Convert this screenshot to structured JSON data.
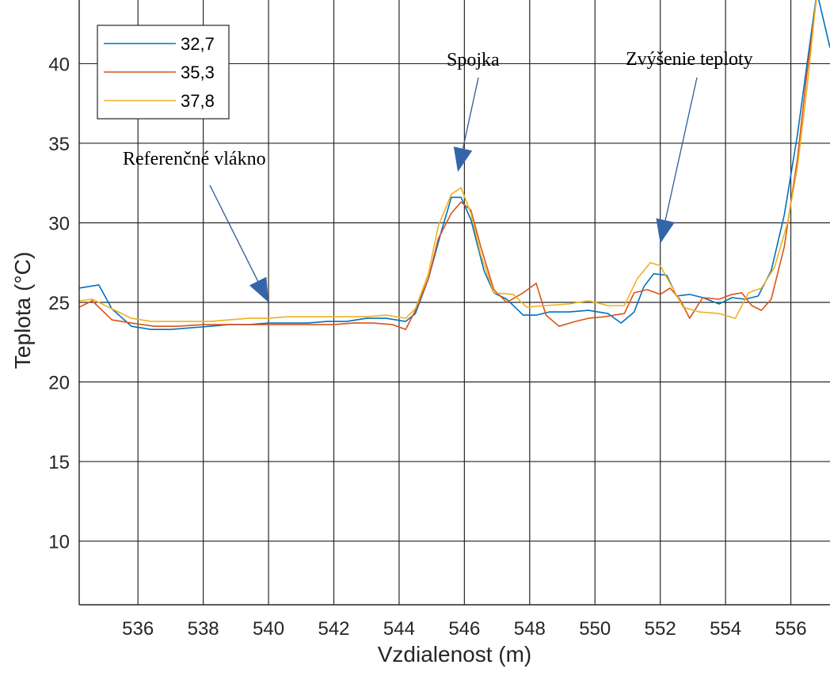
{
  "chart_data": {
    "type": "line",
    "xlabel": "Vzdialenost (m)",
    "ylabel": "Teplota (°C)",
    "xlim": [
      534.2,
      557.2
    ],
    "ylim": [
      6,
      44
    ],
    "xticks": [
      536,
      538,
      540,
      542,
      544,
      546,
      548,
      550,
      552,
      554,
      556
    ],
    "yticks": [
      10,
      15,
      20,
      25,
      30,
      35,
      40
    ],
    "grid": true,
    "legend_position": "top-left",
    "series": [
      {
        "name": "32,7",
        "color": "#0072BD",
        "points": [
          [
            534.2,
            25.9
          ],
          [
            534.8,
            26.1
          ],
          [
            535.2,
            24.6
          ],
          [
            535.8,
            23.5
          ],
          [
            536.4,
            23.3
          ],
          [
            537,
            23.3
          ],
          [
            537.6,
            23.4
          ],
          [
            538.2,
            23.5
          ],
          [
            538.8,
            23.6
          ],
          [
            539.4,
            23.6
          ],
          [
            540,
            23.7
          ],
          [
            540.6,
            23.7
          ],
          [
            541.2,
            23.7
          ],
          [
            541.8,
            23.8
          ],
          [
            542.4,
            23.8
          ],
          [
            543,
            24
          ],
          [
            543.6,
            24
          ],
          [
            544.2,
            23.8
          ],
          [
            544.5,
            24.3
          ],
          [
            544.9,
            26.5
          ],
          [
            545.3,
            29.5
          ],
          [
            545.6,
            31.6
          ],
          [
            545.9,
            31.6
          ],
          [
            546.2,
            30.2
          ],
          [
            546.6,
            27
          ],
          [
            546.9,
            25.6
          ],
          [
            547.3,
            25.2
          ],
          [
            547.8,
            24.2
          ],
          [
            548.2,
            24.2
          ],
          [
            548.6,
            24.4
          ],
          [
            549.2,
            24.4
          ],
          [
            549.8,
            24.5
          ],
          [
            550.4,
            24.3
          ],
          [
            550.8,
            23.7
          ],
          [
            551.2,
            24.4
          ],
          [
            551.5,
            26
          ],
          [
            551.8,
            26.8
          ],
          [
            552.2,
            26.7
          ],
          [
            552.5,
            25.4
          ],
          [
            552.9,
            25.5
          ],
          [
            553.3,
            25.3
          ],
          [
            553.8,
            24.9
          ],
          [
            554.2,
            25.3
          ],
          [
            554.6,
            25.2
          ],
          [
            555,
            25.4
          ],
          [
            555.4,
            27
          ],
          [
            555.8,
            30.5
          ],
          [
            556.2,
            35.5
          ],
          [
            556.5,
            40
          ],
          [
            556.8,
            44.5
          ],
          [
            557.2,
            41
          ]
        ]
      },
      {
        "name": "35,3",
        "color": "#D95319",
        "points": [
          [
            534.2,
            24.7
          ],
          [
            534.6,
            25.1
          ],
          [
            535.2,
            23.9
          ],
          [
            535.8,
            23.7
          ],
          [
            536.5,
            23.5
          ],
          [
            537.2,
            23.5
          ],
          [
            538,
            23.6
          ],
          [
            538.8,
            23.6
          ],
          [
            539.6,
            23.6
          ],
          [
            540.4,
            23.6
          ],
          [
            541.2,
            23.6
          ],
          [
            542,
            23.6
          ],
          [
            542.6,
            23.7
          ],
          [
            543.2,
            23.7
          ],
          [
            543.8,
            23.6
          ],
          [
            544.2,
            23.3
          ],
          [
            544.5,
            24.5
          ],
          [
            544.9,
            26.5
          ],
          [
            545.2,
            29
          ],
          [
            545.6,
            30.6
          ],
          [
            545.9,
            31.3
          ],
          [
            546.2,
            30.8
          ],
          [
            546.5,
            28.5
          ],
          [
            546.9,
            25.8
          ],
          [
            547.3,
            25
          ],
          [
            547.8,
            25.6
          ],
          [
            548.2,
            26.2
          ],
          [
            548.5,
            24.2
          ],
          [
            548.9,
            23.5
          ],
          [
            549.4,
            23.8
          ],
          [
            549.8,
            24
          ],
          [
            550.3,
            24.1
          ],
          [
            550.9,
            24.3
          ],
          [
            551.2,
            25.6
          ],
          [
            551.6,
            25.8
          ],
          [
            552,
            25.5
          ],
          [
            552.3,
            25.9
          ],
          [
            552.6,
            25.2
          ],
          [
            552.9,
            24
          ],
          [
            553.3,
            25.3
          ],
          [
            553.8,
            25.2
          ],
          [
            554.2,
            25.5
          ],
          [
            554.5,
            25.6
          ],
          [
            554.8,
            24.8
          ],
          [
            555.1,
            24.5
          ],
          [
            555.4,
            25.2
          ],
          [
            555.8,
            28.5
          ],
          [
            556.2,
            34
          ],
          [
            556.5,
            39.5
          ],
          [
            556.8,
            44.3
          ]
        ]
      },
      {
        "name": "37,8",
        "color": "#EDB120",
        "points": [
          [
            534.2,
            25.1
          ],
          [
            534.6,
            25.2
          ],
          [
            535.2,
            24.6
          ],
          [
            535.8,
            24
          ],
          [
            536.4,
            23.8
          ],
          [
            537,
            23.8
          ],
          [
            537.6,
            23.8
          ],
          [
            538.2,
            23.8
          ],
          [
            538.8,
            23.9
          ],
          [
            539.4,
            24
          ],
          [
            540,
            24
          ],
          [
            540.6,
            24.1
          ],
          [
            541.2,
            24.1
          ],
          [
            541.8,
            24.1
          ],
          [
            542.4,
            24.1
          ],
          [
            543,
            24.1
          ],
          [
            543.6,
            24.2
          ],
          [
            544.2,
            24
          ],
          [
            544.5,
            24.6
          ],
          [
            544.9,
            26.8
          ],
          [
            545.2,
            29.8
          ],
          [
            545.6,
            31.8
          ],
          [
            545.9,
            32.2
          ],
          [
            546.2,
            30.6
          ],
          [
            546.5,
            28
          ],
          [
            546.9,
            25.6
          ],
          [
            547.5,
            25.5
          ],
          [
            547.9,
            24.7
          ],
          [
            548.5,
            24.8
          ],
          [
            549.2,
            24.9
          ],
          [
            549.8,
            25.1
          ],
          [
            550.4,
            24.8
          ],
          [
            550.9,
            24.8
          ],
          [
            551.3,
            26.5
          ],
          [
            551.7,
            27.5
          ],
          [
            552,
            27.3
          ],
          [
            552.3,
            26.2
          ],
          [
            552.7,
            24.7
          ],
          [
            553.2,
            24.4
          ],
          [
            553.8,
            24.3
          ],
          [
            554.3,
            24
          ],
          [
            554.7,
            25.6
          ],
          [
            555.1,
            25.9
          ],
          [
            555.5,
            27.2
          ],
          [
            555.9,
            30
          ],
          [
            556.2,
            33.5
          ],
          [
            556.5,
            38.5
          ],
          [
            556.8,
            44.5
          ]
        ]
      }
    ],
    "annotations": [
      {
        "text": "Referenčné vlákno",
        "target": [
          540,
          25
        ]
      },
      {
        "text": "Spojka",
        "target": [
          545.8,
          33.2
        ]
      },
      {
        "text": "Zvýšenie teploty",
        "target": [
          552,
          28.7
        ]
      }
    ]
  }
}
